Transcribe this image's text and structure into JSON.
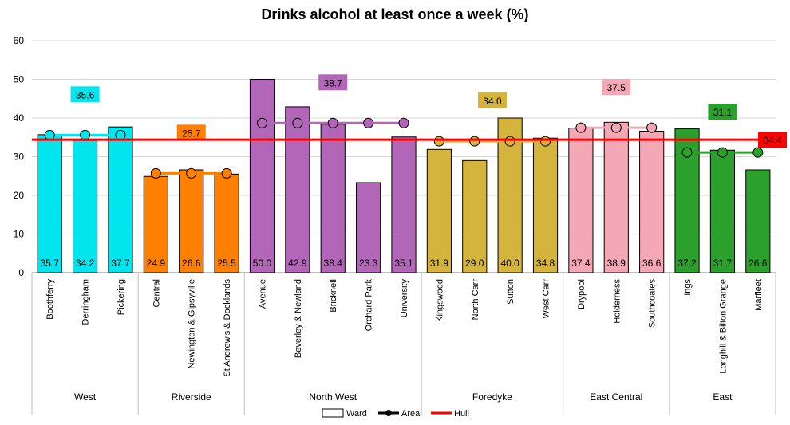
{
  "chart_data": {
    "type": "bar",
    "title": "Drinks alcohol at least once a week (%)",
    "ylim": [
      0,
      60
    ],
    "yticks": [
      0,
      10,
      20,
      30,
      40,
      50,
      60
    ],
    "grid": true,
    "groups": [
      {
        "name": "West",
        "color": "#00e5ee",
        "area_value": 35.6,
        "wards": [
          {
            "name": "Boothferry",
            "value": 35.7
          },
          {
            "name": "Derringham",
            "value": 34.2
          },
          {
            "name": "Pickering",
            "value": 37.7
          }
        ]
      },
      {
        "name": "Riverside",
        "color": "#ff8000",
        "area_value": 25.7,
        "wards": [
          {
            "name": "Central",
            "value": 24.9
          },
          {
            "name": "Newington & Gipsyville",
            "value": 26.6
          },
          {
            "name": "St Andrew's & Docklands",
            "value": 25.5
          }
        ]
      },
      {
        "name": "North West",
        "color": "#b266b8",
        "area_value": 38.7,
        "wards": [
          {
            "name": "Avenue",
            "value": 50.0
          },
          {
            "name": "Beverley & Newland",
            "value": 42.9
          },
          {
            "name": "Bricknell",
            "value": 38.4
          },
          {
            "name": "Orchard Park",
            "value": 23.3
          },
          {
            "name": "University",
            "value": 35.1
          }
        ]
      },
      {
        "name": "Foredyke",
        "color": "#d4b43c",
        "area_value": 34.0,
        "wards": [
          {
            "name": "Kingswood",
            "value": 31.9
          },
          {
            "name": "North Carr",
            "value": 29.0
          },
          {
            "name": "Sutton",
            "value": 40.0
          },
          {
            "name": "West Carr",
            "value": 34.8
          }
        ]
      },
      {
        "name": "East Central",
        "color": "#f4a7b4",
        "area_value": 37.5,
        "wards": [
          {
            "name": "Drypool",
            "value": 37.4
          },
          {
            "name": "Holderness",
            "value": 38.9
          },
          {
            "name": "Southcoates",
            "value": 36.6
          }
        ]
      },
      {
        "name": "East",
        "color": "#2ca02c",
        "area_value": 31.1,
        "wards": [
          {
            "name": "Ings",
            "value": 37.2
          },
          {
            "name": "Longhill & Bilton Grange",
            "value": 31.7
          },
          {
            "name": "Marfleet",
            "value": 26.6
          }
        ]
      }
    ],
    "hull": {
      "name": "Hull",
      "value": 34.4,
      "color": "#ff0000"
    },
    "legend": {
      "position": "bottom",
      "entries": [
        "Ward",
        "Area",
        "Hull"
      ]
    }
  }
}
